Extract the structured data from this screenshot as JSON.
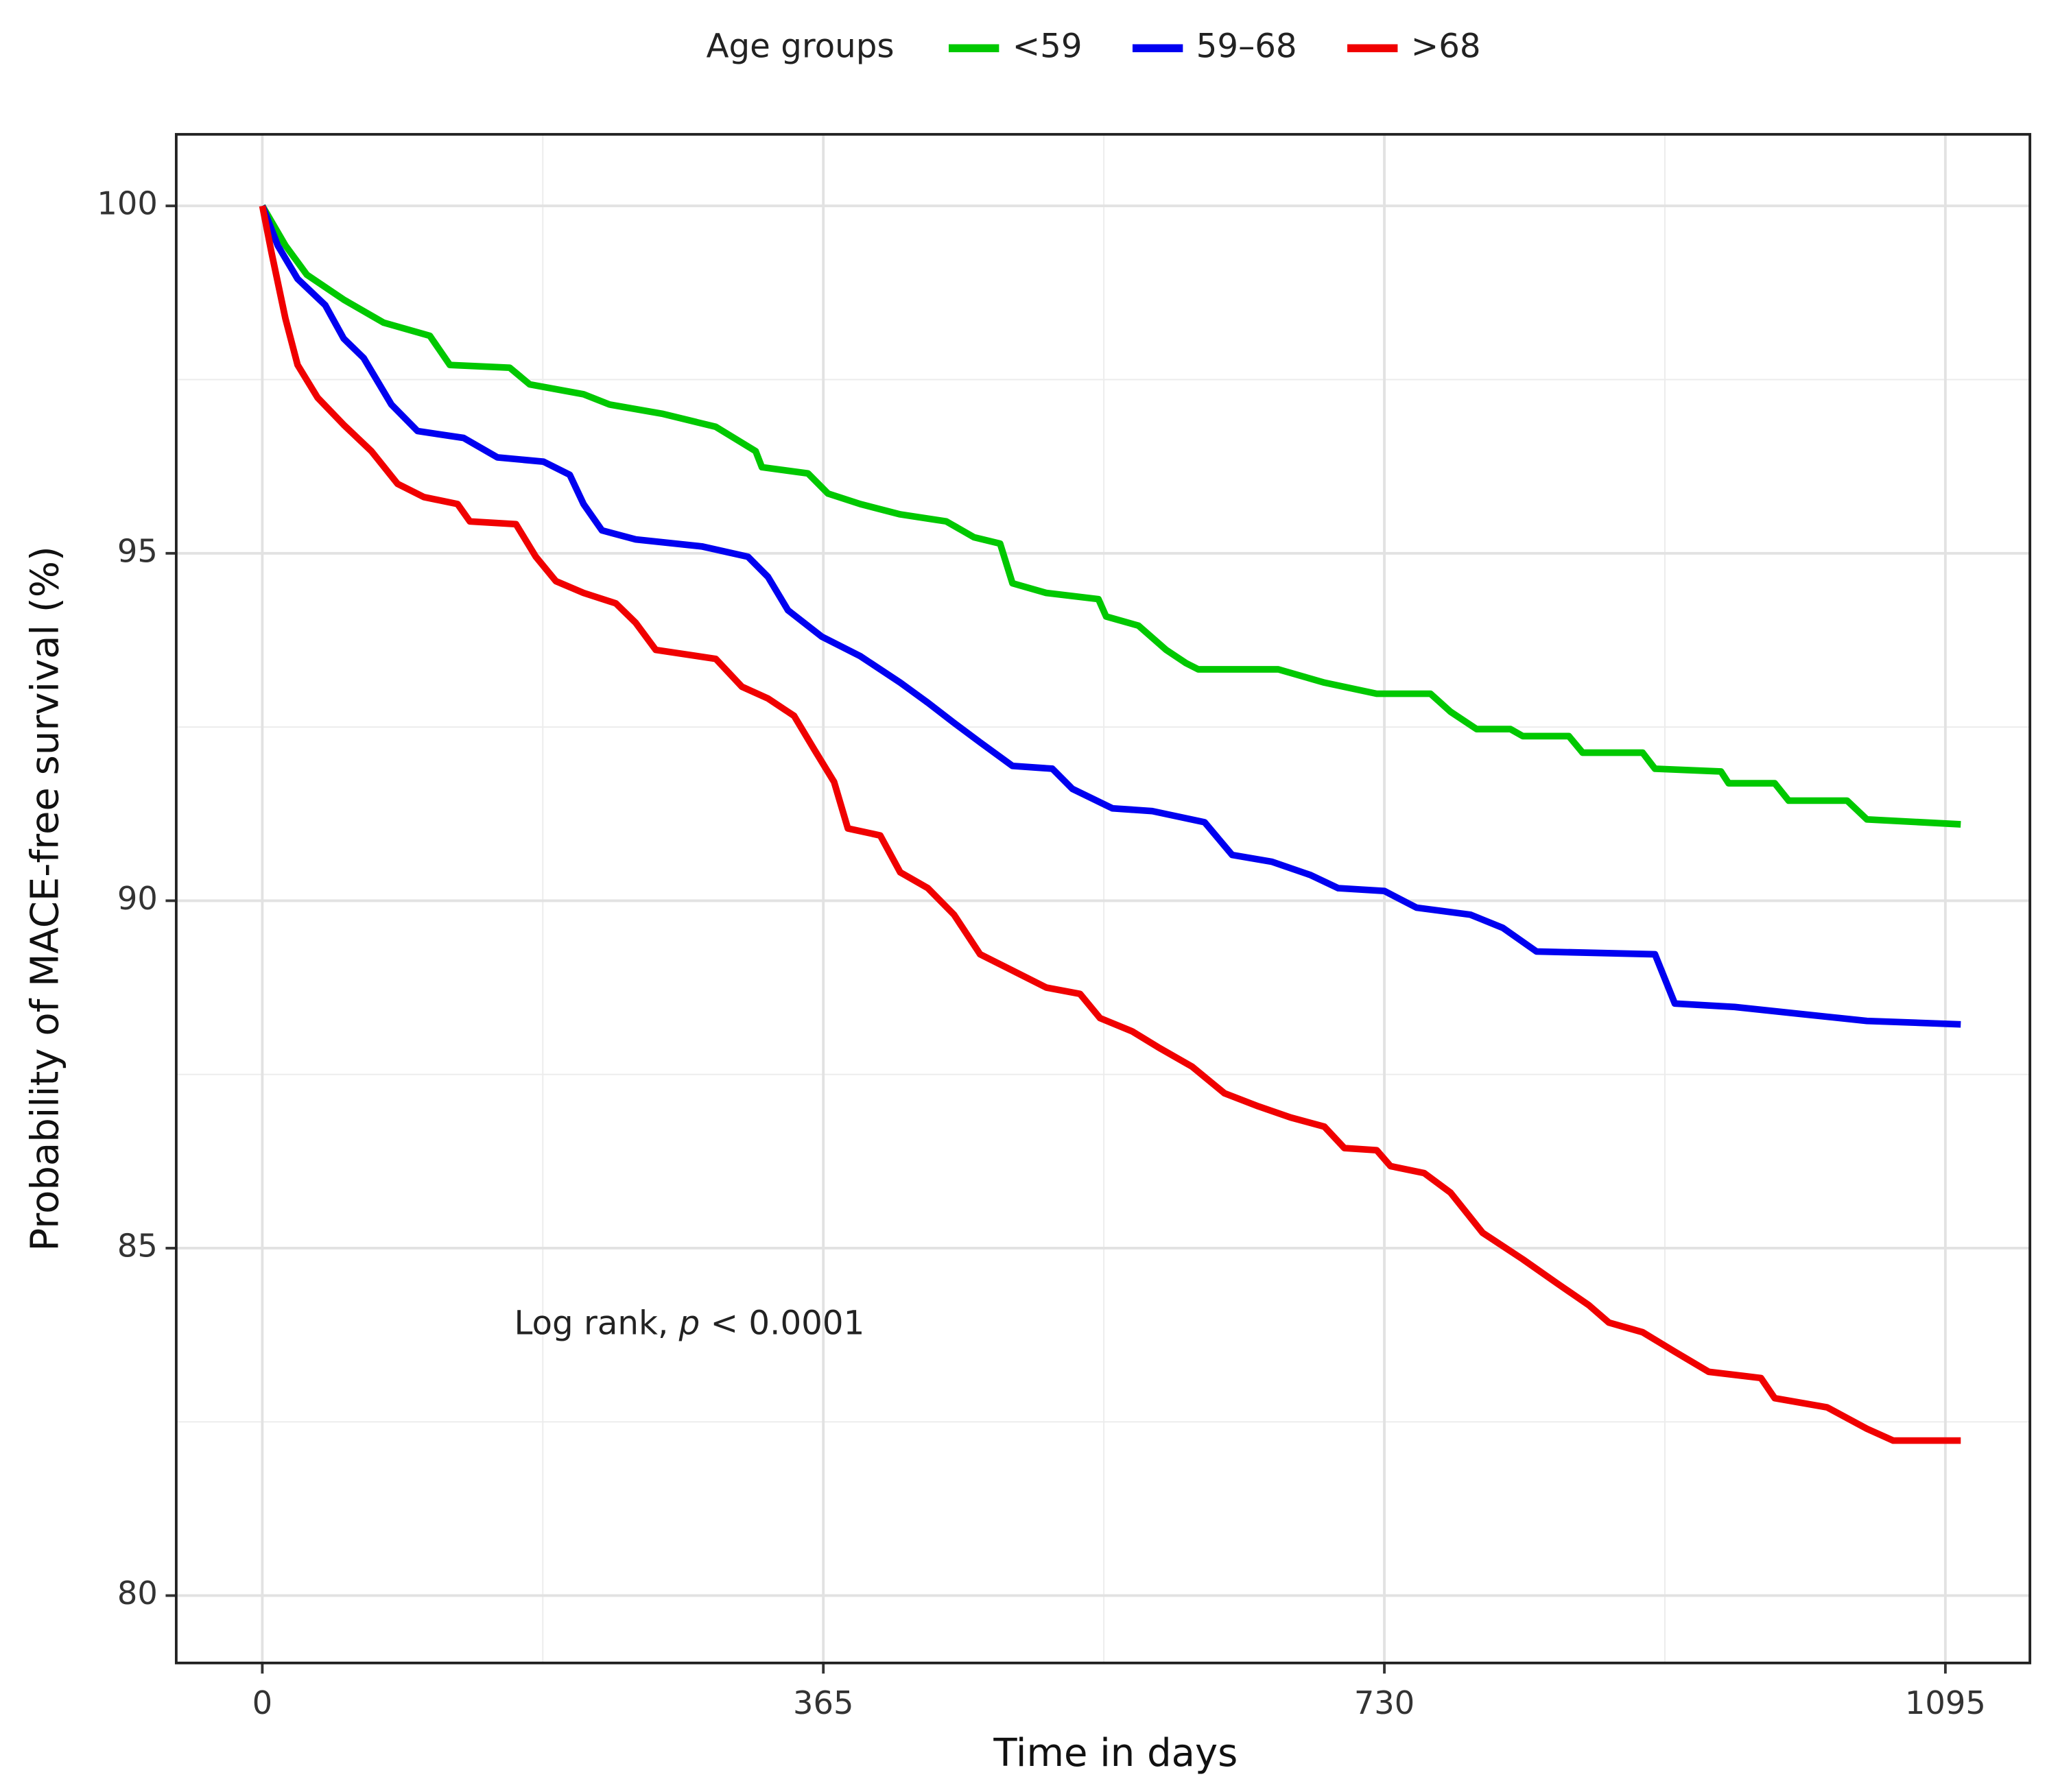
{
  "chart_data": {
    "type": "line",
    "x_label": "Time in days",
    "y_label": "Probability of MACE-free survival (%)",
    "legend_title": "Age groups",
    "legend_position": "top",
    "annotation": [
      "Log rank, ",
      "p",
      " < 0.0001"
    ],
    "xlim": [
      -56,
      1150
    ],
    "ylim": [
      79.03,
      101.03
    ],
    "xticks": [
      0,
      365,
      730,
      1095
    ],
    "yticks": [
      80,
      85,
      90,
      95,
      100
    ],
    "x_minor_grid": [
      182.5,
      547.5,
      912.5
    ],
    "y_minor_grid": [
      82.5,
      87.5,
      92.5,
      97.5
    ],
    "grid": true,
    "series": [
      {
        "name": "<59",
        "color": "#00c800",
        "x": [
          0,
          15,
          29,
          53,
          79,
          109,
          122,
          161,
          174,
          209,
          226,
          260,
          295,
          321,
          325,
          355,
          368,
          389,
          415,
          445,
          463,
          480,
          488,
          510,
          544,
          549,
          570,
          588,
          601,
          609,
          661,
          691,
          725,
          760,
          773,
          790,
          812,
          820,
          850,
          859,
          898,
          906,
          949,
          954,
          984,
          993,
          1031,
          1044,
          1105
        ],
        "values": [
          100,
          99.43,
          99.01,
          98.65,
          98.32,
          98.13,
          97.71,
          97.67,
          97.43,
          97.29,
          97.14,
          97.01,
          96.82,
          96.47,
          96.24,
          96.15,
          95.86,
          95.71,
          95.56,
          95.46,
          95.23,
          95.14,
          94.57,
          94.43,
          94.34,
          94.09,
          93.96,
          93.61,
          93.42,
          93.33,
          93.33,
          93.14,
          92.98,
          92.98,
          92.72,
          92.47,
          92.47,
          92.37,
          92.37,
          92.13,
          92.13,
          91.9,
          91.86,
          91.69,
          91.69,
          91.44,
          91.44,
          91.17,
          91.1
        ]
      },
      {
        "name": "59–68",
        "color": "#0000f0",
        "x": [
          0,
          10,
          23,
          41,
          53,
          66,
          84,
          101,
          131,
          153,
          183,
          200,
          209,
          221,
          243,
          286,
          316,
          329,
          342,
          364,
          389,
          415,
          433,
          450,
          467,
          488,
          514,
          527,
          553,
          579,
          613,
          631,
          657,
          682,
          700,
          730,
          751,
          786,
          807,
          829,
          906,
          919,
          958,
          1001,
          1044,
          1105
        ],
        "values": [
          100,
          99.43,
          98.95,
          98.57,
          98.09,
          97.81,
          97.14,
          96.76,
          96.66,
          96.38,
          96.32,
          96.13,
          95.71,
          95.33,
          95.2,
          95.1,
          94.95,
          94.66,
          94.18,
          93.8,
          93.52,
          93.14,
          92.85,
          92.56,
          92.28,
          91.94,
          91.9,
          91.61,
          91.33,
          91.29,
          91.13,
          90.66,
          90.56,
          90.37,
          90.18,
          90.14,
          89.9,
          89.8,
          89.61,
          89.27,
          89.23,
          88.52,
          88.47,
          88.37,
          88.27,
          88.22
        ]
      },
      {
        "name": ">68",
        "color": "#f00000",
        "x": [
          0,
          6,
          15,
          23,
          36,
          53,
          71,
          88,
          105,
          127,
          135,
          165,
          178,
          191,
          209,
          230,
          243,
          256,
          295,
          312,
          329,
          346,
          359,
          372,
          381,
          402,
          415,
          433,
          450,
          467,
          484,
          510,
          532,
          545,
          566,
          583,
          605,
          626,
          648,
          669,
          691,
          704,
          725,
          734,
          756,
          773,
          794,
          820,
          842,
          863,
          876,
          898,
          919,
          941,
          975,
          984,
          1018,
          1044,
          1061,
          1105
        ],
        "values": [
          100,
          99.33,
          98.38,
          97.71,
          97.24,
          96.85,
          96.47,
          96,
          95.81,
          95.71,
          95.46,
          95.42,
          94.95,
          94.6,
          94.43,
          94.28,
          94,
          93.61,
          93.48,
          93.08,
          92.91,
          92.66,
          92.18,
          91.71,
          91.04,
          90.94,
          90.41,
          90.18,
          89.8,
          89.23,
          89.04,
          88.75,
          88.66,
          88.31,
          88.12,
          87.89,
          87.61,
          87.23,
          87.04,
          86.88,
          86.75,
          86.44,
          86.41,
          86.18,
          86.08,
          85.8,
          85.22,
          84.84,
          84.5,
          84.18,
          83.93,
          83.79,
          83.51,
          83.22,
          83.13,
          82.84,
          82.71,
          82.4,
          82.23,
          82.23
        ]
      }
    ]
  }
}
